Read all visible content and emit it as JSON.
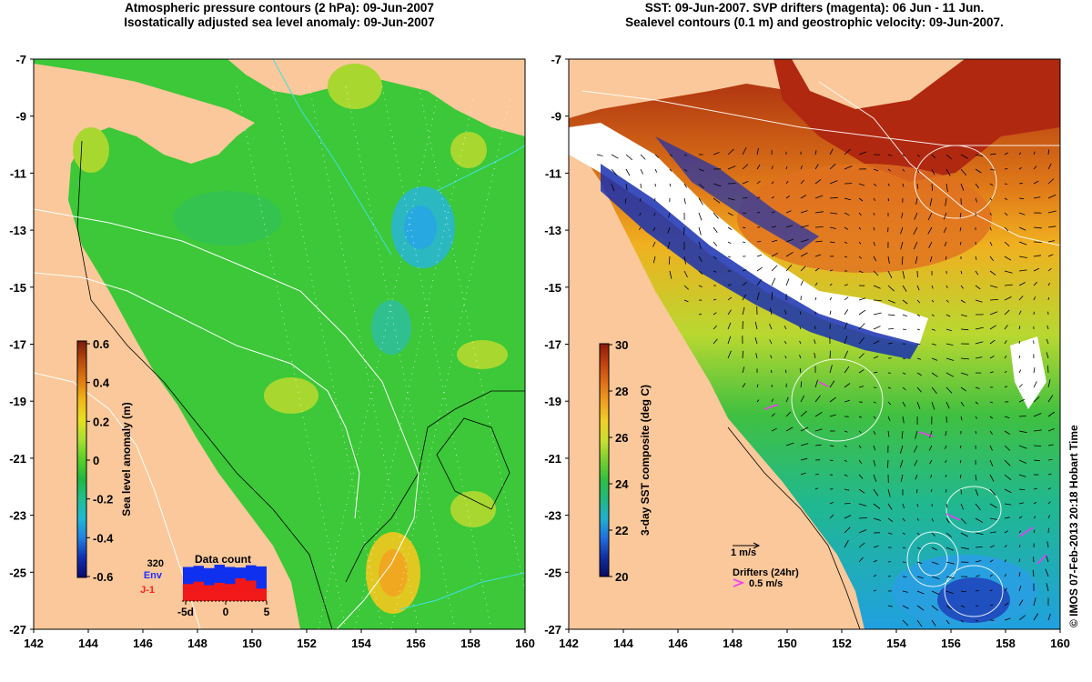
{
  "left_panel": {
    "title_line1": "Atmospheric pressure contours (2 hPa): 09-Jun-2007",
    "title_line2": "Isostatically adjusted sea level anomaly: 09-Jun-2007",
    "colorbar": {
      "label": "Sea level anomaly (m)",
      "ticks": [
        "0.6",
        "0.4",
        "0.2",
        "0",
        "-0.2",
        "-0.4",
        "-0.6"
      ],
      "colors": [
        "#7a1a0a",
        "#b84a10",
        "#e07a10",
        "#f0b818",
        "#e8e020",
        "#a8e030",
        "#58d028",
        "#20b840",
        "#20c090",
        "#20b8d8",
        "#2080e0",
        "#1030b0",
        "#0a0a70"
      ]
    },
    "data_count": {
      "title": "Data count",
      "max_label": "320",
      "env_label": "Env",
      "j1_label": "J-1",
      "x_ticks": [
        "-5d",
        "0",
        "5"
      ],
      "env_values": [
        300,
        310,
        290,
        320,
        300,
        295,
        315,
        305
      ],
      "j1_values": [
        150,
        170,
        140,
        160,
        150,
        200,
        180,
        110
      ]
    }
  },
  "right_panel": {
    "title_line1": "SST: 09-Jun-2007. SVP drifters (magenta): 06 Jun - 11 Jun.",
    "title_line2": "Sealevel contours (0.1 m) and geostrophic velocity: 09-Jun-2007.",
    "colorbar": {
      "label": "3-day SST composite (deg C)",
      "ticks": [
        "30",
        "28",
        "26",
        "24",
        "22",
        "20"
      ],
      "colors": [
        "#8a1a0a",
        "#c04010",
        "#e07018",
        "#f0a020",
        "#f0d028",
        "#c8e030",
        "#78d030",
        "#30c040",
        "#20b880",
        "#20b0d0",
        "#2070e0",
        "#1030a0",
        "#0a0a60"
      ]
    },
    "velocity_legend": "1 m/s",
    "drifters_legend": "Drifters (24hr)",
    "drifters_speed": "0.5 m/s"
  },
  "axes": {
    "x_ticks": [
      "142",
      "144",
      "146",
      "148",
      "150",
      "152",
      "154",
      "156",
      "158",
      "160"
    ],
    "y_ticks": [
      "-7",
      "-9",
      "-11",
      "-13",
      "-15",
      "-17",
      "-19",
      "-21",
      "-23",
      "-25",
      "-27"
    ],
    "lon_range": [
      142,
      160
    ],
    "lat_range": [
      -27,
      -7
    ]
  },
  "colors": {
    "land": "#fac89a",
    "ocean_left": "#3cc838",
    "coast_line": "#000000"
  },
  "credit": "© IMOS 07-Feb-2013 20:18 Hobart Time"
}
